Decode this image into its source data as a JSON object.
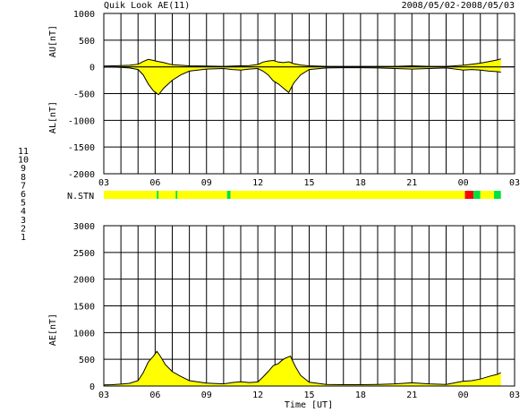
{
  "header": {
    "title": "Quik Look AE(11)",
    "date_range": "2008/05/02-2008/05/03"
  },
  "station_legend": [
    {
      "label": "11",
      "color": "#00d8d8"
    },
    {
      "label": "10",
      "color": "#ff00ff"
    },
    {
      "label": "9",
      "color": "#0000c8"
    },
    {
      "label": "8",
      "color": "#ffff00"
    },
    {
      "label": "7",
      "color": "#00c800"
    },
    {
      "label": "6",
      "color": "#ff0000"
    },
    {
      "label": "5",
      "color": "#b4b4b4"
    },
    {
      "label": "4",
      "color": "#00d8d8"
    },
    {
      "label": "3",
      "color": "#00a8a8"
    },
    {
      "label": "2",
      "color": "#c800c8"
    },
    {
      "label": "1",
      "color": "#0000ff"
    }
  ],
  "colors": {
    "fill": "#ffff00",
    "stn_base": "#ffff00",
    "stn_green": "#00e040",
    "stn_red": "#ff0000",
    "grid": "#000000"
  },
  "chart_data": [
    {
      "type": "area",
      "ylabel_top": "AU[nT]",
      "ylabel_bottom": "AL[nT]",
      "ylim": [
        -2000,
        1000
      ],
      "yticks": [
        1000,
        500,
        0,
        -500,
        -1000,
        -1500,
        -2000
      ],
      "xlim": [
        3,
        27
      ],
      "xticks": [
        "03",
        "06",
        "09",
        "12",
        "15",
        "18",
        "21",
        "00",
        "03"
      ],
      "series": [
        {
          "name": "AU",
          "x": [
            3,
            3.5,
            4,
            4.5,
            5,
            5.3,
            5.6,
            5.9,
            6.2,
            6.5,
            7,
            7.5,
            8,
            9,
            10,
            10.5,
            11,
            11.5,
            12,
            12.3,
            12.6,
            12.9,
            13.2,
            13.5,
            13.8,
            14.1,
            14.5,
            15,
            16,
            17,
            18,
            19,
            20,
            21,
            22,
            23,
            24,
            24.5,
            25,
            25.5,
            26,
            26.2
          ],
          "y": [
            15,
            20,
            25,
            30,
            50,
            100,
            140,
            120,
            100,
            80,
            40,
            30,
            20,
            15,
            10,
            15,
            20,
            25,
            45,
            90,
            110,
            120,
            90,
            80,
            95,
            60,
            35,
            20,
            10,
            10,
            10,
            10,
            10,
            20,
            10,
            10,
            30,
            50,
            70,
            100,
            130,
            150
          ]
        },
        {
          "name": "AL",
          "x": [
            3,
            3.5,
            4,
            4.5,
            5,
            5.3,
            5.6,
            5.9,
            6.2,
            6.5,
            7,
            7.5,
            8,
            9,
            10,
            10.5,
            11,
            11.5,
            12,
            12.3,
            12.6,
            12.9,
            13.2,
            13.5,
            13.8,
            14.1,
            14.5,
            15,
            16,
            17,
            18,
            19,
            20,
            21,
            22,
            23,
            24,
            24.5,
            25,
            25.5,
            26,
            26.2
          ],
          "y": [
            -5,
            -5,
            -10,
            -20,
            -50,
            -150,
            -320,
            -450,
            -520,
            -400,
            -250,
            -150,
            -80,
            -40,
            -30,
            -50,
            -60,
            -40,
            -30,
            -80,
            -150,
            -260,
            -320,
            -400,
            -480,
            -300,
            -150,
            -50,
            -20,
            -15,
            -15,
            -20,
            -30,
            -40,
            -30,
            -20,
            -60,
            -50,
            -60,
            -80,
            -90,
            -100
          ]
        }
      ]
    },
    {
      "type": "bar",
      "label": "N.STN",
      "xlim": [
        3,
        27
      ],
      "segments": [
        {
          "start": 3,
          "end": 6.1,
          "n": 8
        },
        {
          "start": 6.1,
          "end": 6.2,
          "n": 7
        },
        {
          "start": 6.2,
          "end": 7.2,
          "n": 8
        },
        {
          "start": 7.2,
          "end": 7.3,
          "n": 7
        },
        {
          "start": 7.3,
          "end": 10.2,
          "n": 8
        },
        {
          "start": 10.2,
          "end": 10.4,
          "n": 7
        },
        {
          "start": 10.4,
          "end": 24.1,
          "n": 8
        },
        {
          "start": 24.1,
          "end": 24.6,
          "n": 6
        },
        {
          "start": 24.6,
          "end": 25.0,
          "n": 7
        },
        {
          "start": 25.0,
          "end": 25.8,
          "n": 8
        },
        {
          "start": 25.8,
          "end": 26.2,
          "n": 7
        }
      ]
    },
    {
      "type": "area",
      "ylabel": "AE[nT]",
      "xlabel": "Time [UT]",
      "ylim": [
        0,
        3000
      ],
      "yticks": [
        3000,
        2500,
        2000,
        1500,
        1000,
        500,
        0
      ],
      "xlim": [
        3,
        27
      ],
      "xticks": [
        "03",
        "06",
        "09",
        "12",
        "15",
        "18",
        "21",
        "00",
        "03"
      ],
      "series": [
        {
          "name": "AE",
          "x": [
            3,
            3.5,
            4,
            4.5,
            5,
            5.3,
            5.6,
            5.9,
            6.1,
            6.3,
            6.6,
            7,
            7.5,
            8,
            9,
            10,
            10.5,
            11,
            11.5,
            12,
            12.3,
            12.6,
            12.9,
            13.2,
            13.4,
            13.6,
            13.9,
            14.2,
            14.5,
            15,
            16,
            17,
            18,
            19,
            20,
            21,
            22,
            23,
            24,
            24.5,
            25,
            25.5,
            26,
            26.2
          ],
          "y": [
            20,
            25,
            35,
            50,
            100,
            250,
            450,
            560,
            650,
            560,
            400,
            270,
            180,
            100,
            55,
            40,
            65,
            80,
            65,
            75,
            170,
            270,
            380,
            420,
            480,
            520,
            560,
            360,
            200,
            70,
            30,
            25,
            25,
            30,
            40,
            60,
            40,
            30,
            90,
            100,
            130,
            180,
            220,
            250
          ]
        }
      ]
    }
  ]
}
